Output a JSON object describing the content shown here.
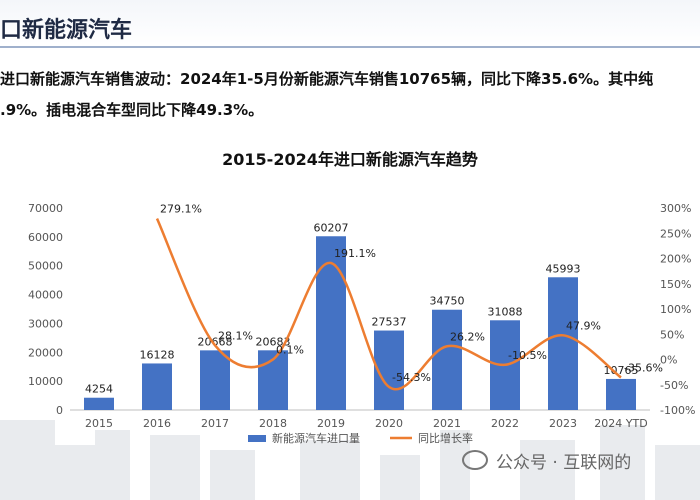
{
  "page": {
    "title": "口新能源汽车",
    "summary_line1": "进口新能源汽车销售波动：2024年1-5月份新能源汽车销售10765辆，同比下降35.6%。其中纯",
    "summary_line2": ".9%。插电混合车型同比下降49.3%。",
    "watermark": "公众号 · 互联网的"
  },
  "colors": {
    "bar": "#4472c4",
    "line": "#ed7d31",
    "title": "#1f2a44"
  },
  "chart_data": {
    "type": "bar",
    "title": "2015-2024年进口新能源汽车趋势",
    "categories": [
      "2015",
      "2016",
      "2017",
      "2018",
      "2019",
      "2020",
      "2021",
      "2022",
      "2023",
      "2024 YTD"
    ],
    "series": [
      {
        "name": "新能源汽车进口量",
        "type": "bar",
        "axis": "left",
        "values": [
          4254,
          16128,
          20668,
          20683,
          60207,
          27537,
          34750,
          31088,
          45993,
          10765
        ],
        "labels": [
          "4254",
          "16128",
          "20668",
          "20683",
          "60207",
          "27537",
          "34750",
          "31088",
          "45993",
          "10765"
        ]
      },
      {
        "name": "同比增长率",
        "type": "line",
        "axis": "right",
        "values": [
          null,
          279.1,
          28.1,
          0.1,
          191.1,
          -54.3,
          26.2,
          -10.5,
          47.9,
          -35.6
        ],
        "labels": [
          "",
          "279.1%",
          "28.1%",
          "0.1%",
          "191.1%",
          "-54.3%",
          "26.2%",
          "-10.5%",
          "47.9%",
          "-35.6%"
        ]
      }
    ],
    "y_left": {
      "min": 0,
      "max": 70000,
      "ticks": [
        "0",
        "10000",
        "20000",
        "30000",
        "40000",
        "50000",
        "60000",
        "70000"
      ]
    },
    "y_right": {
      "min": -100,
      "max": 300,
      "ticks": [
        "-100%",
        "-50%",
        "0%",
        "50%",
        "100%",
        "150%",
        "200%",
        "250%",
        "300%"
      ]
    },
    "grid": false,
    "legend": "bottom"
  }
}
